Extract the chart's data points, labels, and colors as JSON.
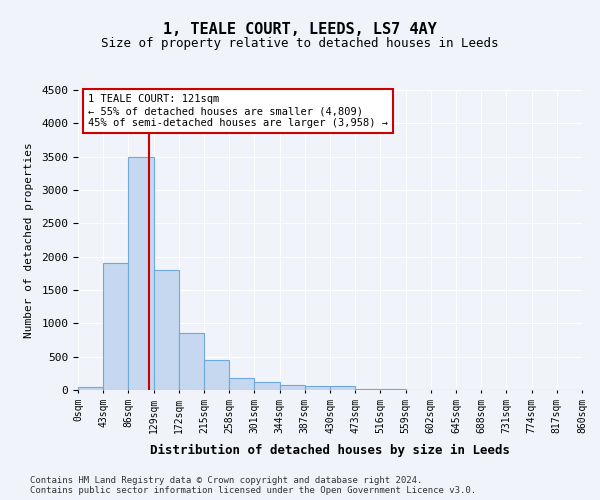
{
  "title": "1, TEALE COURT, LEEDS, LS7 4AY",
  "subtitle": "Size of property relative to detached houses in Leeds",
  "xlabel": "Distribution of detached houses by size in Leeds",
  "ylabel": "Number of detached properties",
  "bin_labels": [
    "0sqm",
    "43sqm",
    "86sqm",
    "129sqm",
    "172sqm",
    "215sqm",
    "258sqm",
    "301sqm",
    "344sqm",
    "387sqm",
    "430sqm",
    "473sqm",
    "516sqm",
    "559sqm",
    "602sqm",
    "645sqm",
    "688sqm",
    "731sqm",
    "774sqm",
    "817sqm",
    "860sqm"
  ],
  "bar_values": [
    50,
    1900,
    3500,
    1800,
    850,
    450,
    180,
    120,
    75,
    60,
    60,
    20,
    10,
    5,
    3,
    2,
    2,
    1,
    1,
    1
  ],
  "bar_color": "#c5d8f0",
  "bar_edgecolor": "#6fa8dc",
  "vline_color": "#cc0000",
  "annotation_text": "1 TEALE COURT: 121sqm\n← 55% of detached houses are smaller (4,809)\n45% of semi-detached houses are larger (3,958) →",
  "annotation_box_color": "#ffffff",
  "annotation_box_edgecolor": "#cc0000",
  "ylim": [
    0,
    4500
  ],
  "yticks": [
    0,
    500,
    1000,
    1500,
    2000,
    2500,
    3000,
    3500,
    4000,
    4500
  ],
  "footer_text": "Contains HM Land Registry data © Crown copyright and database right 2024.\nContains public sector information licensed under the Open Government Licence v3.0.",
  "bg_color": "#f0f4fa",
  "plot_bg_color": "#f0f4fa"
}
